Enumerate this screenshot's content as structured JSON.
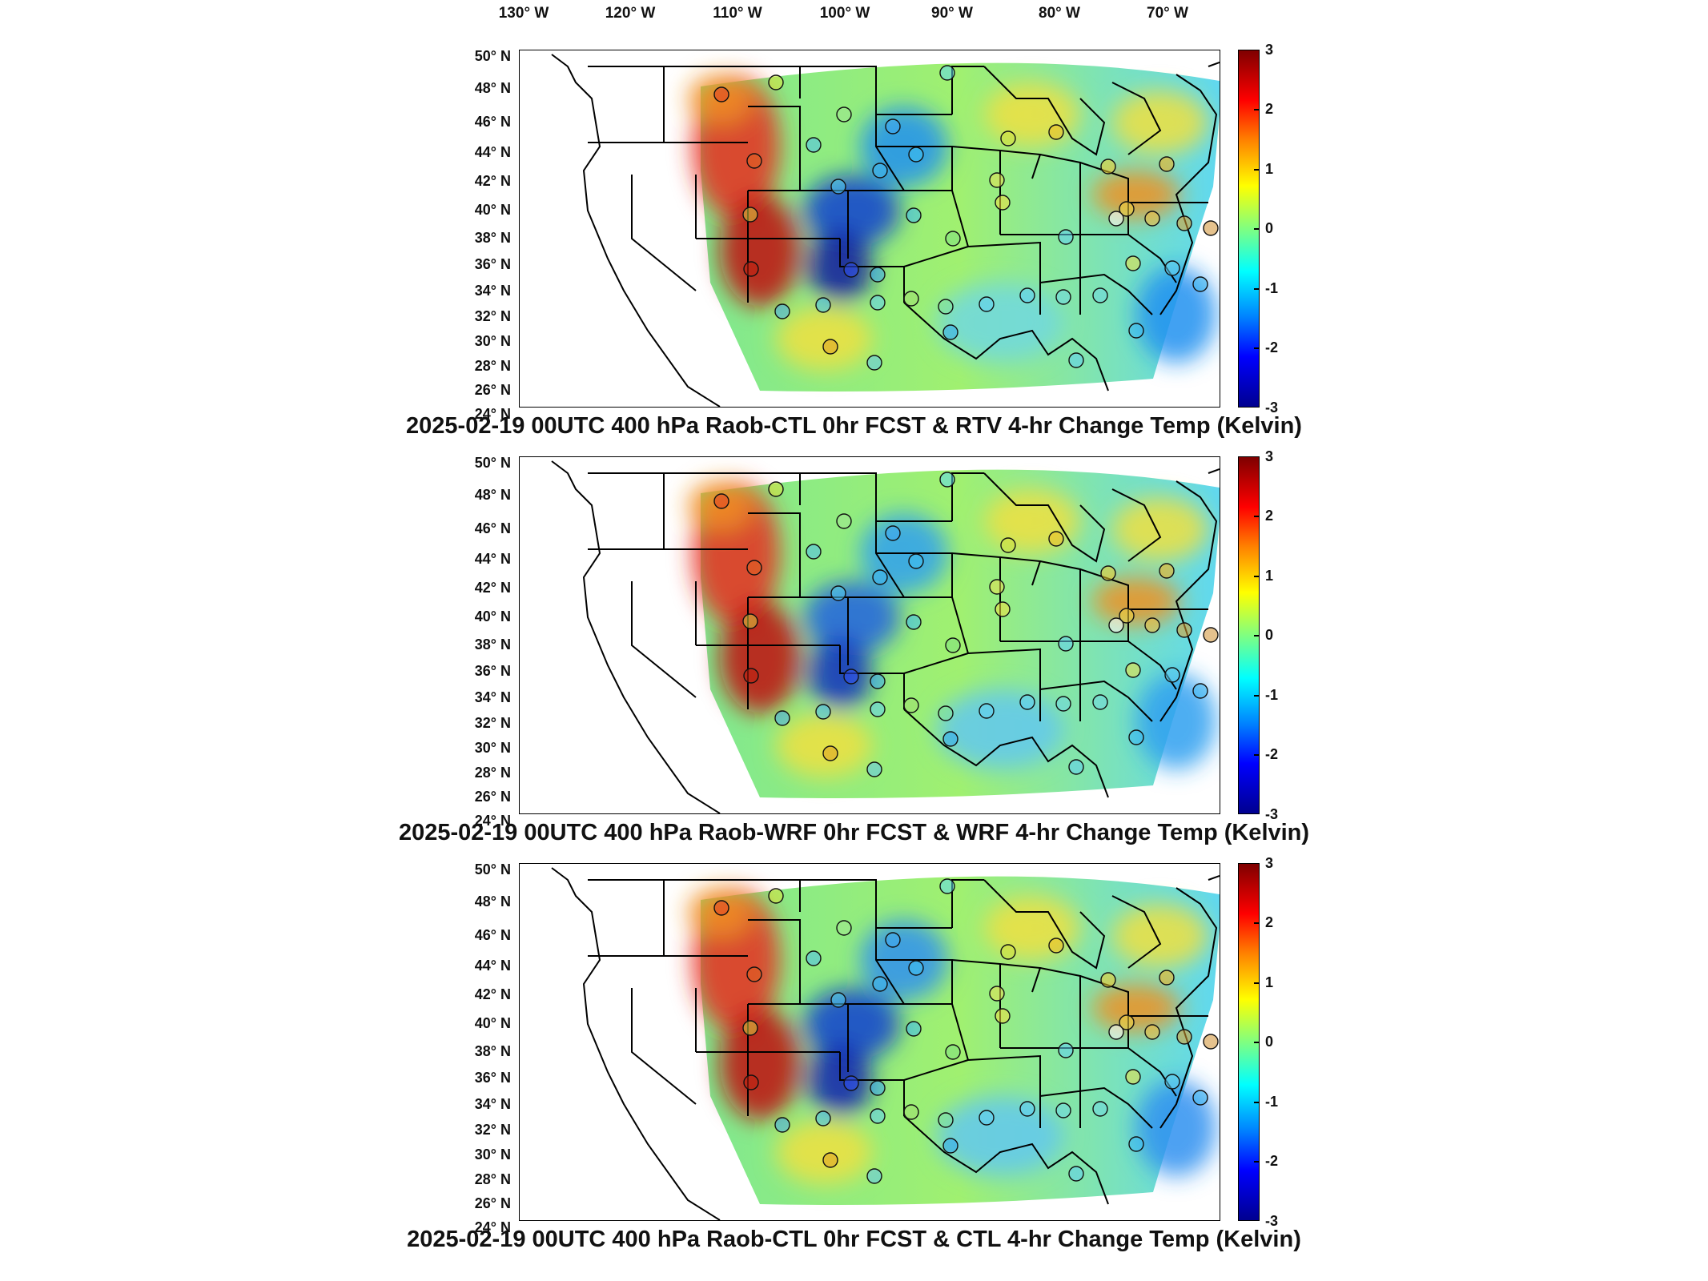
{
  "longitude_labels": [
    "130° W",
    "120° W",
    "110° W",
    "100° W",
    "90° W",
    "80° W",
    "70° W"
  ],
  "latitude_labels": [
    "50° N",
    "48° N",
    "46° N",
    "44° N",
    "42° N",
    "40° N",
    "38° N",
    "36° N",
    "34° N",
    "32° N",
    "30° N",
    "28° N",
    "26° N",
    "24° N"
  ],
  "colorbar_ticks": [
    "3",
    "2",
    "1",
    "0",
    "-1",
    "-2",
    "-3"
  ],
  "colorbar_colors": [
    "#7f0000",
    "#ff0000",
    "#ff8000",
    "#ffff00",
    "#80ff80",
    "#00ffff",
    "#0080ff",
    "#0000ff",
    "#00008f"
  ],
  "panels": [
    {
      "title": "2025-02-19 00UTC 400 hPa Raob-CTL 0hr FCST & RTV 4-hr Change Temp (Kelvin)"
    },
    {
      "title": "2025-02-19 00UTC 400 hPa Raob-WRF 0hr FCST & WRF 4-hr Change Temp (Kelvin)"
    },
    {
      "title": "2025-02-19 00UTC 400 hPa Raob-CTL 0hr FCST & CTL 4-hr Change Temp (Kelvin)"
    }
  ]
}
